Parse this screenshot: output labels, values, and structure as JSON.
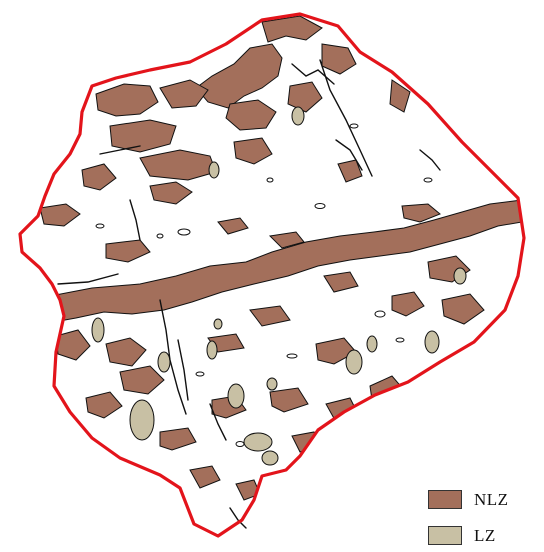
{
  "legend": {
    "items": [
      {
        "label": "NLZ",
        "color": "#a36f5b"
      },
      {
        "label": "LZ",
        "color": "#c8c0a4"
      }
    ]
  },
  "colors": {
    "boundary": "#e3141b",
    "outline": "#111111",
    "background": "#ffffff"
  }
}
